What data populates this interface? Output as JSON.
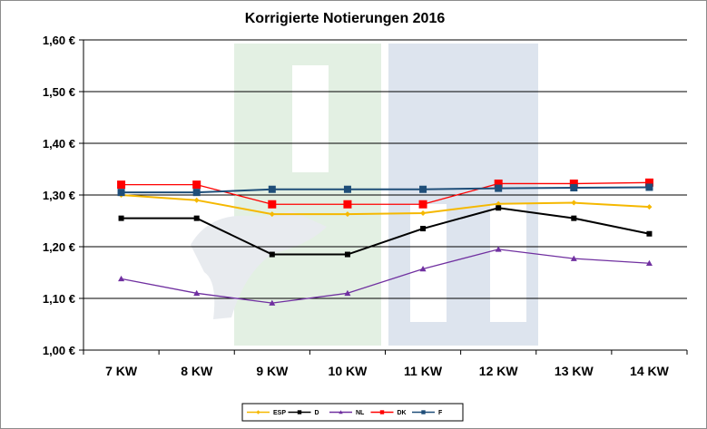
{
  "chart_data": {
    "type": "line",
    "title": "Korrigierte Notierungen 2016",
    "xlabel": "",
    "ylabel": "",
    "categories": [
      "7 KW",
      "8 KW",
      "9 KW",
      "10 KW",
      "11 KW",
      "12 KW",
      "13 KW",
      "14 KW"
    ],
    "ylim": [
      1.0,
      1.6
    ],
    "y_ticks": [
      "1,00 €",
      "1,10 €",
      "1,20 €",
      "1,30 €",
      "1,40 €",
      "1,50 €",
      "1,60 €"
    ],
    "grid": true,
    "legend_position": "bottom",
    "series": [
      {
        "name": "ESP",
        "color": "#f5b800",
        "marker": "diamond",
        "values": [
          1.3,
          1.29,
          1.263,
          1.263,
          1.265,
          1.283,
          1.285,
          1.277
        ]
      },
      {
        "name": "D",
        "color": "#000000",
        "marker": "square",
        "values": [
          1.255,
          1.255,
          1.185,
          1.185,
          1.235,
          1.275,
          1.255,
          1.225
        ]
      },
      {
        "name": "NL",
        "color": "#7030a0",
        "marker": "triangle",
        "values": [
          1.138,
          1.11,
          1.091,
          1.11,
          1.157,
          1.195,
          1.177,
          1.168
        ]
      },
      {
        "name": "DK",
        "color": "#ff0000",
        "marker": "square",
        "values": [
          1.32,
          1.32,
          1.282,
          1.282,
          1.282,
          1.322,
          1.322,
          1.324
        ]
      },
      {
        "name": "F",
        "color": "#1f4e79",
        "marker": "square",
        "values": [
          1.305,
          1.305,
          1.311,
          1.311,
          1.311,
          1.313,
          1.314,
          1.315
        ]
      }
    ],
    "watermark": "ISN"
  }
}
